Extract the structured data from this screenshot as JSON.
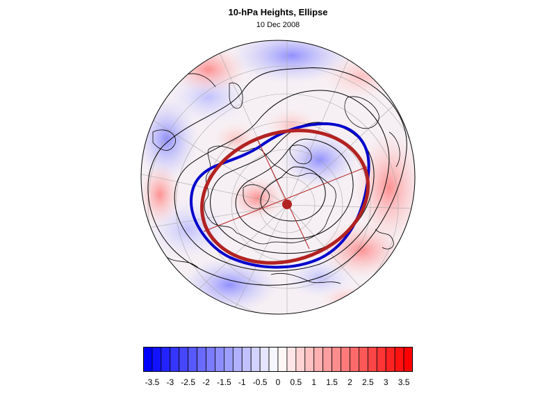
{
  "figure": {
    "title": "10-hPa Heights, Ellipse",
    "subtitle": "10 Dec 2008"
  },
  "colors": {
    "negative": "#0000ff",
    "positive": "#ff0000",
    "neutral": "#ffffff",
    "ellipse": "#b22222",
    "contour_blue": "#0000cc",
    "contours": "#000000",
    "coastline": "#000000",
    "grid": "#999999"
  },
  "colorbar": {
    "min": -3.75,
    "max": 3.75,
    "step": 0.25,
    "tick_labels": [
      "-3.5",
      "-3",
      "-2.5",
      "-2",
      "-1.5",
      "-1",
      "-0.5",
      "0",
      "0.5",
      "1",
      "1.5",
      "2",
      "2.5",
      "3",
      "3.5"
    ],
    "tick_values": [
      -3.5,
      -3,
      -2.5,
      -2,
      -1.5,
      -1,
      -0.5,
      0,
      0.5,
      1,
      1.5,
      2,
      2.5,
      3,
      3.5
    ]
  },
  "map": {
    "projection": "polar stereographic, north pole",
    "field": "standardized 10-hPa height anomaly",
    "graticule": true,
    "coastlines": true,
    "ellipse_fit": true,
    "ellipse_center_marker": true
  }
}
